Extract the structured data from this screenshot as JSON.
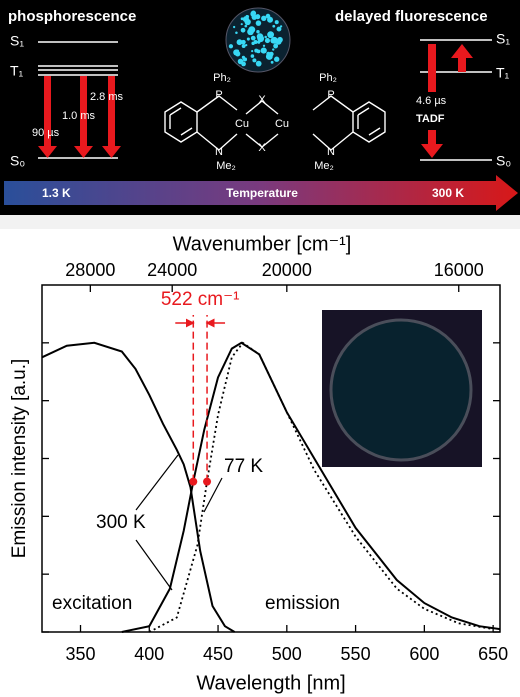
{
  "diagram": {
    "left_title": "phosphorescence",
    "right_title": "delayed fluorescence",
    "left_levels": [
      "S₁",
      "T₁",
      "S₀"
    ],
    "right_levels": [
      "S₁",
      "T₁",
      "S₀"
    ],
    "lifetimes": [
      "90 µs",
      "1.0 ms",
      "2.8 ms"
    ],
    "tadf_lifetime": "4.6 µs",
    "tadf": "TADF",
    "molecule": {
      "ph": "Ph₂",
      "p": "P",
      "cu": "Cu",
      "x": "X",
      "n": "N",
      "me": "Me₂"
    },
    "temperature_bar": {
      "low": "1.3 K",
      "label": "Temperature",
      "high": "300 K"
    }
  },
  "chart_data": {
    "type": "line",
    "x_label": "Wavelength [nm]",
    "y_label": "Emission intensity [a.u.]",
    "x2_label": "Wavenumber [cm⁻¹]",
    "xlim": [
      322,
      655
    ],
    "xticks": [
      350,
      400,
      450,
      500,
      550,
      600,
      650
    ],
    "x2_scale": "reciprocal",
    "x2ticks": [
      28000,
      24000,
      20000,
      16000
    ],
    "ylim": [
      0,
      1.2
    ],
    "yticks": [
      0,
      0.2,
      0.4,
      0.6,
      0.8,
      1.0
    ],
    "ytick_labels": false,
    "series": [
      {
        "name": "excitation",
        "color": "#000000",
        "dash": "solid",
        "x": [
          322,
          340,
          360,
          380,
          390,
          400,
          410,
          420,
          425,
          430,
          437,
          446,
          455,
          462
        ],
        "values": [
          0.95,
          0.99,
          1.0,
          0.97,
          0.91,
          0.82,
          0.72,
          0.63,
          0.58,
          0.5,
          0.28,
          0.09,
          0.02,
          0.0
        ]
      },
      {
        "name": "emission",
        "color": "#000000",
        "dash": "solid",
        "x": [
          380,
          400,
          415,
          425,
          432,
          440,
          450,
          460,
          467,
          480,
          500,
          520,
          550,
          580,
          600,
          620,
          640,
          655
        ],
        "values": [
          0.0,
          0.02,
          0.15,
          0.35,
          0.52,
          0.7,
          0.88,
          0.98,
          1.0,
          0.96,
          0.76,
          0.6,
          0.36,
          0.18,
          0.1,
          0.05,
          0.02,
          0.01
        ]
      },
      {
        "name": "77 K",
        "color": "#000000",
        "dash": "dotted",
        "x": [
          400,
          420,
          435,
          442,
          450,
          460,
          468,
          480,
          500,
          520,
          550,
          580,
          600,
          625,
          650
        ],
        "values": [
          0.0,
          0.05,
          0.3,
          0.52,
          0.75,
          0.95,
          1.0,
          0.96,
          0.76,
          0.56,
          0.33,
          0.15,
          0.08,
          0.03,
          0.01
        ]
      }
    ],
    "annotations": {
      "both_solid": "300 K",
      "shift": "522 cm⁻¹"
    },
    "markers": {
      "color": "#e8191e",
      "x": [
        432,
        442
      ],
      "values": [
        0.52,
        0.52
      ]
    }
  }
}
